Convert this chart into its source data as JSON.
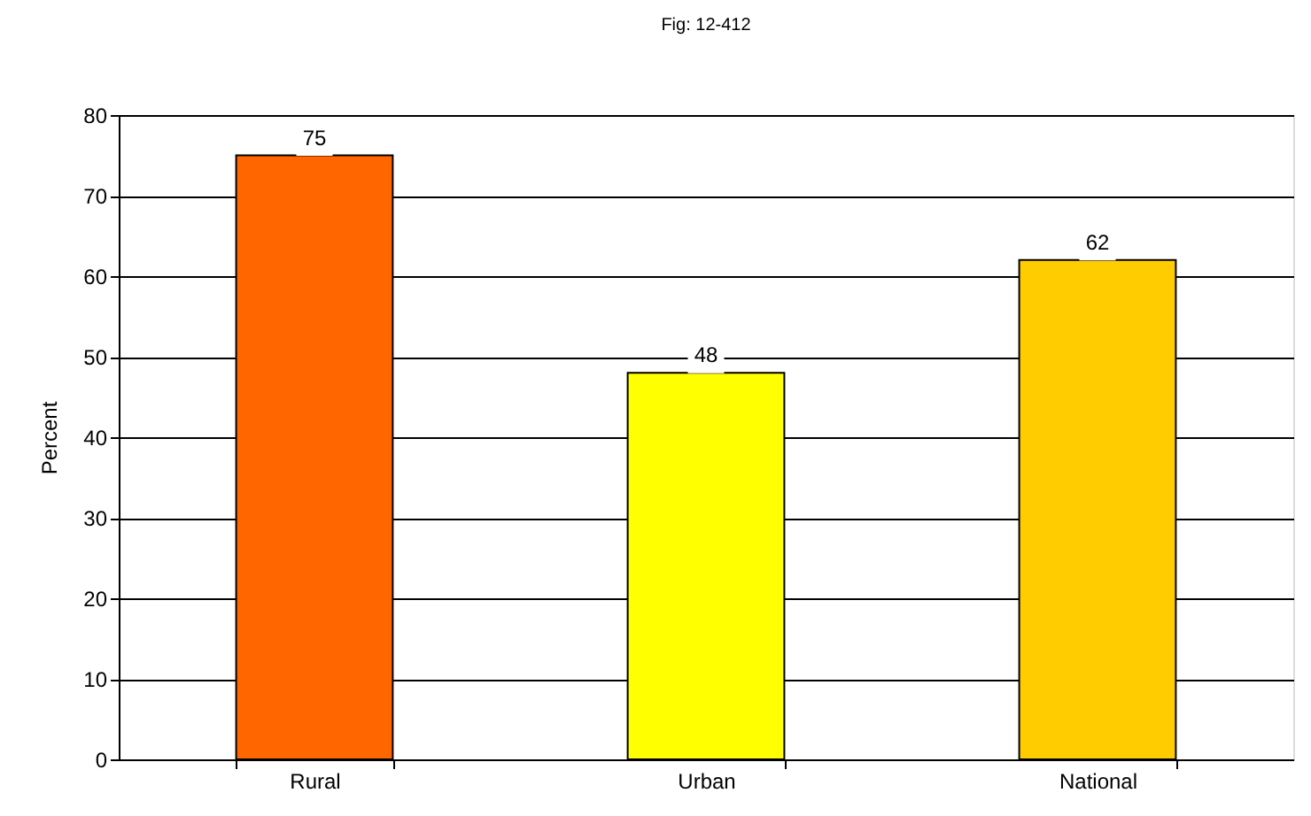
{
  "chart_data": {
    "type": "bar",
    "title": "Fig: 12-412",
    "ylabel": "Percent",
    "categories": [
      "Rural",
      "Urban",
      "National"
    ],
    "values": [
      75,
      48,
      62
    ],
    "colors": [
      "#ff6600",
      "#ffff00",
      "#ffcc00"
    ],
    "ylim": [
      0,
      80
    ],
    "yticks": [
      0,
      10,
      20,
      30,
      40,
      50,
      60,
      70,
      80
    ],
    "grid": "y",
    "data_labels": true
  }
}
